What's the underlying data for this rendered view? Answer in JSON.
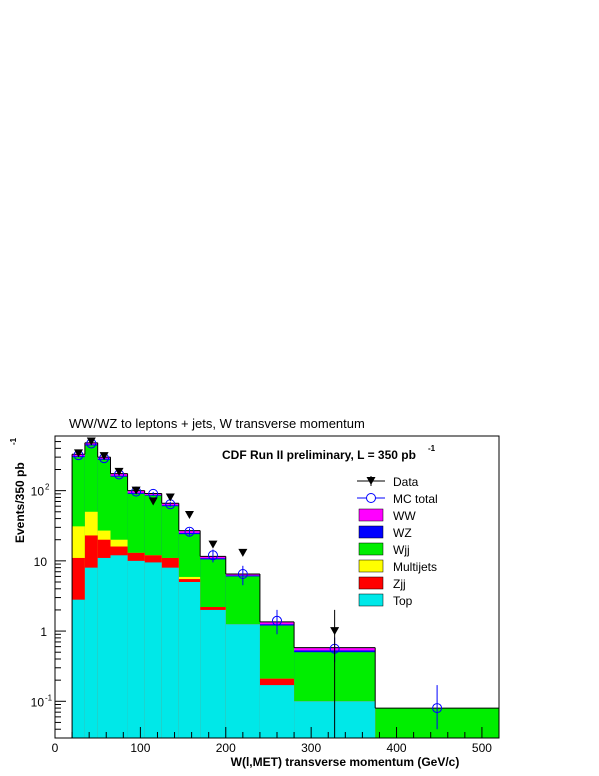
{
  "chart_data": {
    "type": "bar",
    "title": "WW/WZ to leptons + jets, W transverse momentum",
    "annotation": {
      "text": "CDF Run II preliminary, L = 350 pb",
      "superscript": "-1"
    },
    "xlabel": "W(l,MET) transverse momentum (GeV/c)",
    "ylabel": {
      "text": "Events/350 pb",
      "superscript": "-1"
    },
    "xlim": [
      0,
      520
    ],
    "ylim": [
      0.03,
      600
    ],
    "yscale": "log",
    "xticks": [
      0,
      100,
      200,
      300,
      400,
      500
    ],
    "xtick_labels": [
      "0",
      "100",
      "200",
      "300",
      "400",
      "500"
    ],
    "yticks": [
      {
        "value": 0.1,
        "base": "10",
        "exp": "-1"
      },
      {
        "value": 1,
        "base": "1",
        "exp": ""
      },
      {
        "value": 10,
        "base": "10",
        "exp": ""
      },
      {
        "value": 100,
        "base": "10",
        "exp": "2"
      }
    ],
    "bin_edges": [
      20,
      35,
      50,
      65,
      85,
      105,
      125,
      145,
      170,
      200,
      240,
      280,
      375,
      520
    ],
    "stack": [
      {
        "name": "Top",
        "color": "#00e8e8",
        "values": [
          2.8,
          8.0,
          11.0,
          12.0,
          10.0,
          9.5,
          8.0,
          5.0,
          2.0,
          1.25,
          0.17,
          0.1,
          0
        ]
      },
      {
        "name": "Zjj",
        "color": "#ff0000",
        "values": [
          11.0,
          23.0,
          20.0,
          16.0,
          13.0,
          12.0,
          11.0,
          5.5,
          2.2,
          1.25,
          0.21,
          0.1,
          0
        ]
      },
      {
        "name": "Multijets",
        "color": "#ffff00",
        "values": [
          31.0,
          50.0,
          27.0,
          20.0,
          13.0,
          12.0,
          11.0,
          5.9,
          2.2,
          1.25,
          0.21,
          0.1,
          0
        ]
      },
      {
        "name": "Wjj",
        "color": "#00ee00",
        "values": [
          300.0,
          440.0,
          275.0,
          158.0,
          90.0,
          85.0,
          60.0,
          24.0,
          10.5,
          6.0,
          1.2,
          0.5,
          0.08
        ]
      },
      {
        "name": "WZ",
        "color": "#0000ff",
        "values": [
          310.0,
          455.0,
          285.0,
          163.0,
          93.0,
          87.0,
          62.0,
          25.0,
          10.9,
          6.2,
          1.25,
          0.53,
          0.08
        ]
      },
      {
        "name": "WW",
        "color": "#ff00ff",
        "values": [
          330.0,
          480.0,
          300.0,
          175.0,
          100.0,
          91.0,
          66.0,
          27.0,
          11.6,
          6.5,
          1.35,
          0.58,
          0.08
        ]
      }
    ],
    "data_points": {
      "name": "Data",
      "x": [
        27.5,
        42.5,
        57.5,
        75,
        95,
        115,
        135,
        157.5,
        185,
        220,
        327.5
      ],
      "y": [
        340,
        500,
        310,
        185,
        100,
        70,
        80,
        45,
        17,
        13,
        1.0
      ],
      "err_low": [
        0,
        0,
        0,
        0,
        0,
        0,
        0,
        0,
        0,
        0,
        0.97
      ],
      "err_high": [
        0,
        0,
        0,
        0,
        0,
        0,
        0,
        0,
        0,
        0,
        1.0
      ]
    },
    "mc_total": {
      "name": "MC total",
      "x": [
        27.5,
        42.5,
        57.5,
        75,
        95,
        115,
        135,
        157.5,
        185,
        220,
        260,
        327.5,
        447.5
      ],
      "y": [
        320,
        470,
        290,
        170,
        97,
        90,
        64,
        26,
        12,
        6.5,
        1.4,
        0.56,
        0.08
      ],
      "err_low": [
        18,
        22,
        15,
        10,
        6,
        6,
        5,
        3,
        2.5,
        2.0,
        0.5,
        0.2,
        0.04
      ],
      "err_high": [
        18,
        22,
        15,
        10,
        6,
        6,
        5,
        3,
        2.5,
        2.0,
        0.6,
        0.25,
        0.09
      ]
    },
    "legend": {
      "placement": "top-right",
      "entries": [
        {
          "label": "Data",
          "kind": "marker"
        },
        {
          "label": "MC total",
          "kind": "circle"
        },
        {
          "label": "WW",
          "kind": "box",
          "color": "#ff00ff"
        },
        {
          "label": "WZ",
          "kind": "box",
          "color": "#0000ff"
        },
        {
          "label": "Wjj",
          "kind": "box",
          "color": "#00ee00"
        },
        {
          "label": "Multijets",
          "kind": "box",
          "color": "#ffff00"
        },
        {
          "label": "Zjj",
          "kind": "box",
          "color": "#ff0000"
        },
        {
          "label": "Top",
          "kind": "box",
          "color": "#00e8e8"
        }
      ]
    },
    "colors": {
      "mc_total": "#0000ff",
      "data": "#000000"
    }
  }
}
